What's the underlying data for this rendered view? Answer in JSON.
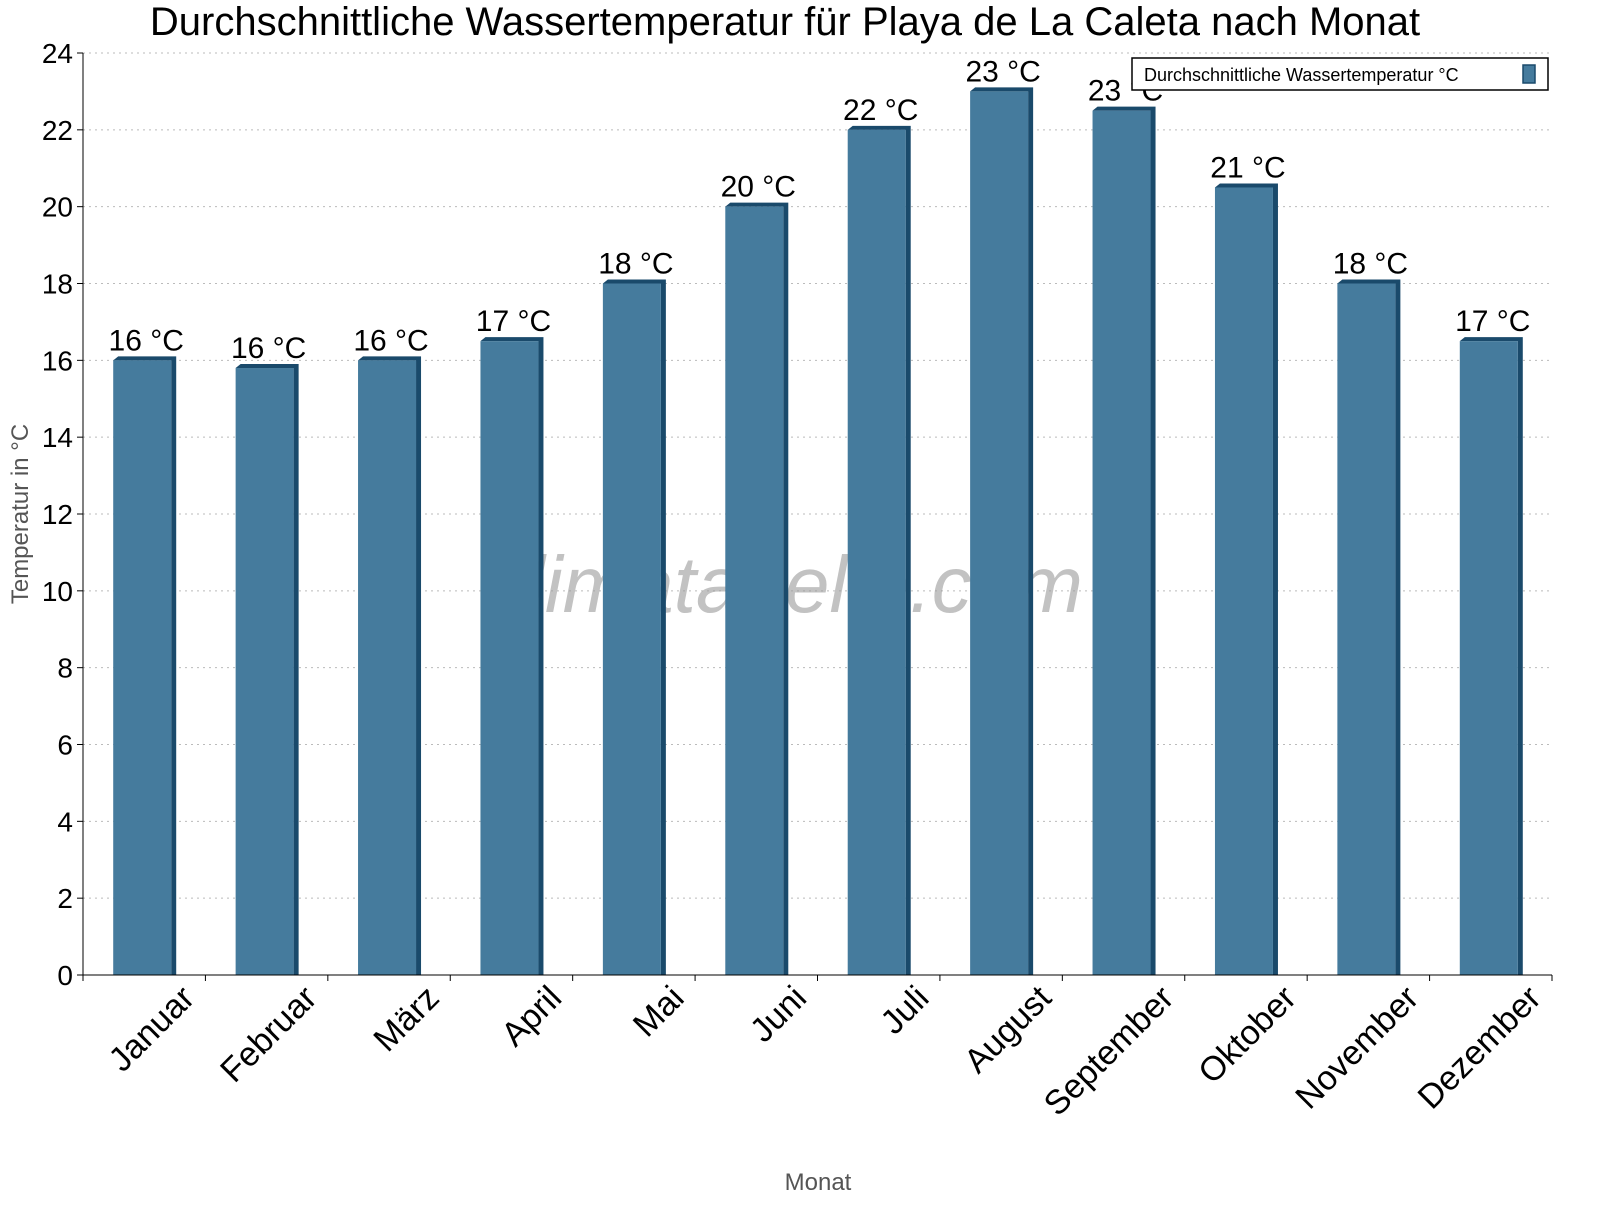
{
  "chart_data": {
    "type": "bar",
    "title": "Durchschnittliche Wassertemperatur für Playa de La Caleta nach Monat",
    "xlabel": "Monat",
    "ylabel": "Temperatur in °C",
    "ylim": [
      0,
      24
    ],
    "yticks": [
      0,
      2,
      4,
      6,
      8,
      10,
      12,
      14,
      16,
      18,
      20,
      22,
      24
    ],
    "grid": true,
    "legend_position": "top-right",
    "categories": [
      "Januar",
      "Februar",
      "März",
      "April",
      "Mai",
      "Juni",
      "Juli",
      "August",
      "September",
      "Oktober",
      "November",
      "Dezember"
    ],
    "series": [
      {
        "name": "Durchschnittliche Wassertemperatur °C",
        "values": [
          16,
          15.8,
          16,
          16.5,
          18,
          20,
          22,
          23,
          22.5,
          20.5,
          18,
          16.5
        ],
        "data_labels": [
          "16 °C",
          "16 °C",
          "16 °C",
          "17 °C",
          "18 °C",
          "20 °C",
          "22 °C",
          "23 °C",
          "23 °C",
          "21 °C",
          "18 °C",
          "17 °C"
        ],
        "color": "#457b9d",
        "edge_color": "#1a4a6b"
      }
    ],
    "watermark": "klimatabelle.com"
  }
}
